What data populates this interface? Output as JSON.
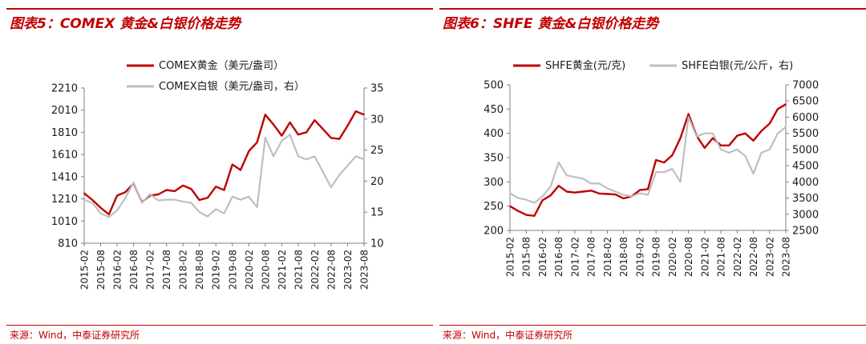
{
  "panels": {
    "left": {
      "title": "图表5：COMEX 黄金&白银价格走势",
      "source": "来源：Wind，中泰证券研究所"
    },
    "right": {
      "title": "图表6：SHFE 黄金&白银价格走势",
      "source": "来源：Wind，中泰证券研究所"
    }
  },
  "chart_data": [
    {
      "type": "line",
      "x_tick_labels": [
        "2015-02",
        "2015-08",
        "2016-02",
        "2016-08",
        "2017-02",
        "2017-08",
        "2018-02",
        "2018-08",
        "2019-02",
        "2019-08",
        "2020-02",
        "2020-08",
        "2021-02",
        "2021-08",
        "2022-02",
        "2022-08",
        "2023-02",
        "2023-08"
      ],
      "y_left": {
        "min": 810,
        "max": 2210,
        "ticks": [
          810,
          1010,
          1210,
          1410,
          1610,
          1810,
          2010,
          2210
        ]
      },
      "y_right": {
        "min": 10,
        "max": 35,
        "ticks": [
          10,
          15,
          20,
          25,
          30,
          35
        ]
      },
      "legend_position": "top-center",
      "series": [
        {
          "name": "COMEX黄金（美元/盎司）",
          "axis": "left",
          "color": "#c00000",
          "x": [
            "2015-02",
            "2015-05",
            "2015-08",
            "2015-11",
            "2016-02",
            "2016-05",
            "2016-08",
            "2016-11",
            "2017-02",
            "2017-05",
            "2017-08",
            "2017-11",
            "2018-02",
            "2018-05",
            "2018-08",
            "2018-11",
            "2019-02",
            "2019-05",
            "2019-08",
            "2019-11",
            "2020-02",
            "2020-05",
            "2020-08",
            "2020-11",
            "2021-02",
            "2021-05",
            "2021-08",
            "2021-11",
            "2022-02",
            "2022-05",
            "2022-08",
            "2022-11",
            "2023-02",
            "2023-05",
            "2023-08"
          ],
          "values": [
            1260,
            1200,
            1130,
            1070,
            1240,
            1270,
            1350,
            1180,
            1240,
            1250,
            1290,
            1280,
            1330,
            1300,
            1200,
            1220,
            1320,
            1290,
            1520,
            1470,
            1640,
            1720,
            1970,
            1880,
            1780,
            1900,
            1790,
            1810,
            1920,
            1840,
            1760,
            1750,
            1870,
            2000,
            1970
          ]
        },
        {
          "name": "COMEX白银（美元/盎司，右）",
          "axis": "right",
          "color": "#bfbfbf",
          "x": [
            "2015-02",
            "2015-05",
            "2015-08",
            "2015-11",
            "2016-02",
            "2016-05",
            "2016-08",
            "2016-11",
            "2017-02",
            "2017-05",
            "2017-08",
            "2017-11",
            "2018-02",
            "2018-05",
            "2018-08",
            "2018-11",
            "2019-02",
            "2019-05",
            "2019-08",
            "2019-11",
            "2020-02",
            "2020-05",
            "2020-08",
            "2020-11",
            "2021-02",
            "2021-05",
            "2021-08",
            "2021-11",
            "2022-02",
            "2022-05",
            "2022-08",
            "2022-11",
            "2023-02",
            "2023-05",
            "2023-08"
          ],
          "values": [
            17.0,
            16.5,
            14.8,
            14.2,
            15.3,
            17.3,
            19.8,
            16.5,
            17.9,
            16.9,
            17.0,
            17.0,
            16.7,
            16.5,
            15.0,
            14.3,
            15.5,
            14.8,
            17.5,
            17.0,
            17.5,
            15.8,
            27.0,
            24.0,
            26.5,
            27.5,
            24.0,
            23.5,
            24.0,
            21.5,
            19.0,
            21.0,
            22.5,
            24.0,
            23.5
          ]
        }
      ]
    },
    {
      "type": "line",
      "x_tick_labels": [
        "2015-02",
        "2015-08",
        "2016-02",
        "2016-08",
        "2017-02",
        "2017-08",
        "2018-02",
        "2018-08",
        "2019-02",
        "2019-08",
        "2020-02",
        "2020-08",
        "2021-02",
        "2021-08",
        "2022-02",
        "2022-08",
        "2023-02",
        "2023-08"
      ],
      "y_left": {
        "min": 200,
        "max": 500,
        "ticks": [
          200,
          250,
          300,
          350,
          400,
          450,
          500
        ]
      },
      "y_right": {
        "min": 2500,
        "max": 7000,
        "ticks": [
          2500,
          3000,
          3500,
          4000,
          4500,
          5000,
          5500,
          6000,
          6500,
          7000
        ]
      },
      "legend_position": "top",
      "series": [
        {
          "name": "SHFE黄金(元/克)",
          "axis": "left",
          "color": "#c00000",
          "x": [
            "2015-02",
            "2015-05",
            "2015-08",
            "2015-11",
            "2016-02",
            "2016-05",
            "2016-08",
            "2016-11",
            "2017-02",
            "2017-05",
            "2017-08",
            "2017-11",
            "2018-02",
            "2018-05",
            "2018-08",
            "2018-11",
            "2019-02",
            "2019-05",
            "2019-08",
            "2019-11",
            "2020-02",
            "2020-05",
            "2020-08",
            "2020-11",
            "2021-02",
            "2021-05",
            "2021-08",
            "2021-11",
            "2022-02",
            "2022-05",
            "2022-08",
            "2022-11",
            "2023-02",
            "2023-05",
            "2023-08"
          ],
          "values": [
            250,
            240,
            232,
            230,
            262,
            272,
            292,
            280,
            278,
            280,
            282,
            276,
            275,
            274,
            266,
            270,
            283,
            285,
            345,
            340,
            355,
            390,
            440,
            395,
            370,
            390,
            375,
            375,
            395,
            400,
            385,
            405,
            420,
            450,
            460
          ]
        },
        {
          "name": "SHFE白银(元/公斤，右)",
          "axis": "right",
          "color": "#bfbfbf",
          "x": [
            "2015-02",
            "2015-05",
            "2015-08",
            "2015-11",
            "2016-02",
            "2016-05",
            "2016-08",
            "2016-11",
            "2017-02",
            "2017-05",
            "2017-08",
            "2017-11",
            "2018-02",
            "2018-05",
            "2018-08",
            "2018-11",
            "2019-02",
            "2019-05",
            "2019-08",
            "2019-11",
            "2020-02",
            "2020-05",
            "2020-08",
            "2020-11",
            "2021-02",
            "2021-05",
            "2021-08",
            "2021-11",
            "2022-02",
            "2022-05",
            "2022-08",
            "2022-11",
            "2023-02",
            "2023-05",
            "2023-08"
          ],
          "values": [
            3650,
            3500,
            3450,
            3350,
            3550,
            3850,
            4600,
            4200,
            4150,
            4100,
            3950,
            3950,
            3800,
            3700,
            3600,
            3550,
            3650,
            3600,
            4300,
            4300,
            4400,
            4000,
            6000,
            5400,
            5500,
            5500,
            5000,
            4900,
            5000,
            4800,
            4250,
            4900,
            5000,
            5500,
            5700
          ]
        }
      ]
    }
  ]
}
